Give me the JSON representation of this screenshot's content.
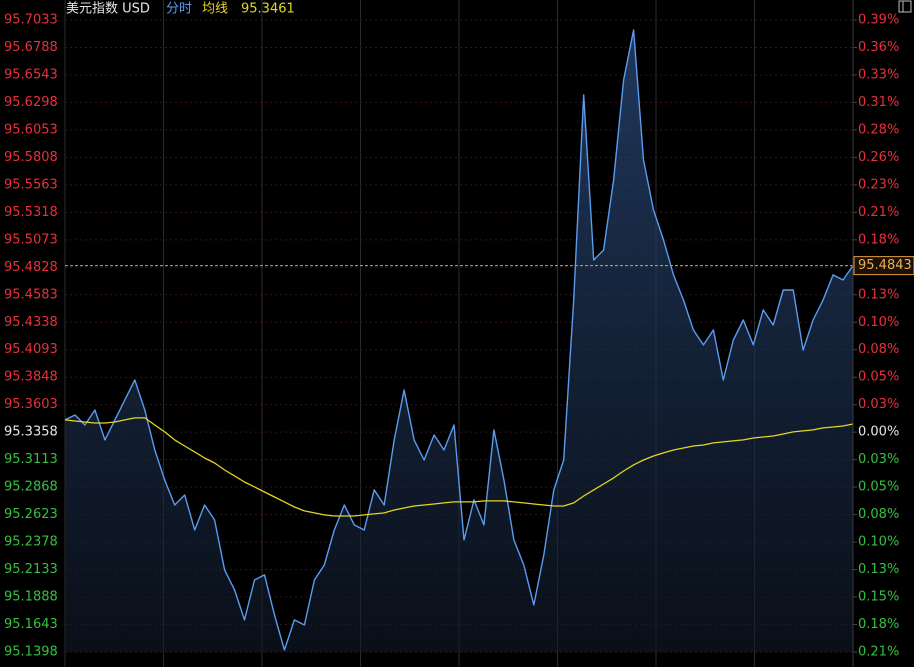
{
  "chart_data": {
    "type": "line",
    "title": "美元指数 USD",
    "ma_value": 95.3461,
    "ma_color": "#e6d51e",
    "up_color": "#e8303a",
    "down_color": "#35c040",
    "flat_color": "#e6e6e6",
    "grid": true,
    "ylim": [
      95.1398,
      95.7033
    ],
    "yticks": [
      95.7033,
      95.6788,
      95.6543,
      95.6298,
      95.6053,
      95.5808,
      95.5563,
      95.5318,
      95.5073,
      95.4828,
      95.4583,
      95.4338,
      95.4093,
      95.3848,
      95.3603,
      95.3358,
      95.3113,
      95.2868,
      95.2623,
      95.2378,
      95.2133,
      95.1888,
      95.1643,
      95.1398
    ],
    "y2lim": [
      -0.2056,
      0.3855
    ],
    "y2ticks": [
      {
        "value": 0.3855,
        "label": "0.39%"
      },
      {
        "value": 0.3598,
        "label": "0.36%"
      },
      {
        "value": 0.3341,
        "label": "0.33%"
      },
      {
        "value": 0.3084,
        "label": "0.31%"
      },
      {
        "value": 0.2827,
        "label": "0.28%"
      },
      {
        "value": 0.257,
        "label": "0.26%"
      },
      {
        "value": 0.2313,
        "label": "0.23%"
      },
      {
        "value": 0.2056,
        "label": "0.21%"
      },
      {
        "value": 0.1799,
        "label": "0.18%"
      },
      {
        "value": 0.1542,
        "label": "0.15%"
      },
      {
        "value": 0.1285,
        "label": "0.13%"
      },
      {
        "value": 0.1028,
        "label": "0.10%"
      },
      {
        "value": 0.0771,
        "label": "0.08%"
      },
      {
        "value": 0.0514,
        "label": "0.05%"
      },
      {
        "value": 0.0257,
        "label": "0.03%"
      },
      {
        "value": 0,
        "label": "0.00%"
      },
      {
        "value": -0.0257,
        "label": "0.03%"
      },
      {
        "value": -0.0514,
        "label": "0.05%"
      },
      {
        "value": -0.0771,
        "label": "0.08%"
      },
      {
        "value": -0.1028,
        "label": "0.10%"
      },
      {
        "value": -0.1285,
        "label": "0.13%"
      },
      {
        "value": -0.1542,
        "label": "0.15%"
      },
      {
        "value": -0.1799,
        "label": "0.18%"
      },
      {
        "value": -0.2056,
        "label": "0.21%"
      }
    ],
    "series": [
      {
        "name": "分时",
        "color": "#5b9bef",
        "values": [
          95.3467,
          95.3511,
          95.3422,
          95.3556,
          95.3289,
          95.3467,
          95.3645,
          95.3823,
          95.3556,
          95.3199,
          95.2932,
          95.2709,
          95.2798,
          95.2486,
          95.2709,
          95.2575,
          95.213,
          95.1951,
          95.1684,
          95.204,
          95.2085,
          95.1728,
          95.1416,
          95.1684,
          95.1639,
          95.204,
          95.2174,
          95.2486,
          95.2709,
          95.2531,
          95.2486,
          95.2843,
          95.2709,
          95.3289,
          95.3734,
          95.3289,
          95.311,
          95.3333,
          95.3199,
          95.3422,
          95.2397,
          95.2754,
          95.2531,
          95.3378,
          95.2932,
          95.2397,
          95.2174,
          95.1817,
          95.2263,
          95.2843,
          95.311,
          95.4537,
          95.6364,
          95.4893,
          95.4982,
          95.5607,
          95.6498,
          95.6944,
          95.5785,
          95.5339,
          95.5072,
          95.476,
          95.4537,
          95.4269,
          95.4136,
          95.4269,
          95.3823,
          95.418,
          95.4358,
          95.4136,
          95.4448,
          95.4314,
          95.4626,
          95.4626,
          95.4091,
          95.4358,
          95.4537,
          95.476,
          95.4715,
          95.4843
        ]
      },
      {
        "name": "均线",
        "color": "#e6d51e",
        "values": [
          95.3467,
          95.3458,
          95.3449,
          95.344,
          95.344,
          95.3449,
          95.3467,
          95.3485,
          95.3485,
          95.3422,
          95.336,
          95.3289,
          95.3235,
          95.3182,
          95.3128,
          95.3083,
          95.3021,
          95.2968,
          95.2914,
          95.287,
          95.2825,
          95.278,
          95.2736,
          95.2691,
          95.2656,
          95.2638,
          95.262,
          95.2611,
          95.2611,
          95.2611,
          95.262,
          95.2629,
          95.2638,
          95.2664,
          95.2682,
          95.27,
          95.2709,
          95.2718,
          95.2727,
          95.2736,
          95.2736,
          95.2736,
          95.2745,
          95.2745,
          95.2745,
          95.2736,
          95.2727,
          95.2718,
          95.2709,
          95.27,
          95.27,
          95.2727,
          95.2789,
          95.2843,
          95.2896,
          95.295,
          95.3012,
          95.3066,
          95.311,
          95.3146,
          95.3173,
          95.3199,
          95.3217,
          95.3235,
          95.3244,
          95.3262,
          95.3271,
          95.328,
          95.3289,
          95.3306,
          95.3315,
          95.3324,
          95.3342,
          95.336,
          95.3369,
          95.3378,
          95.3396,
          95.3404,
          95.3413,
          95.3431
        ]
      }
    ]
  }
}
